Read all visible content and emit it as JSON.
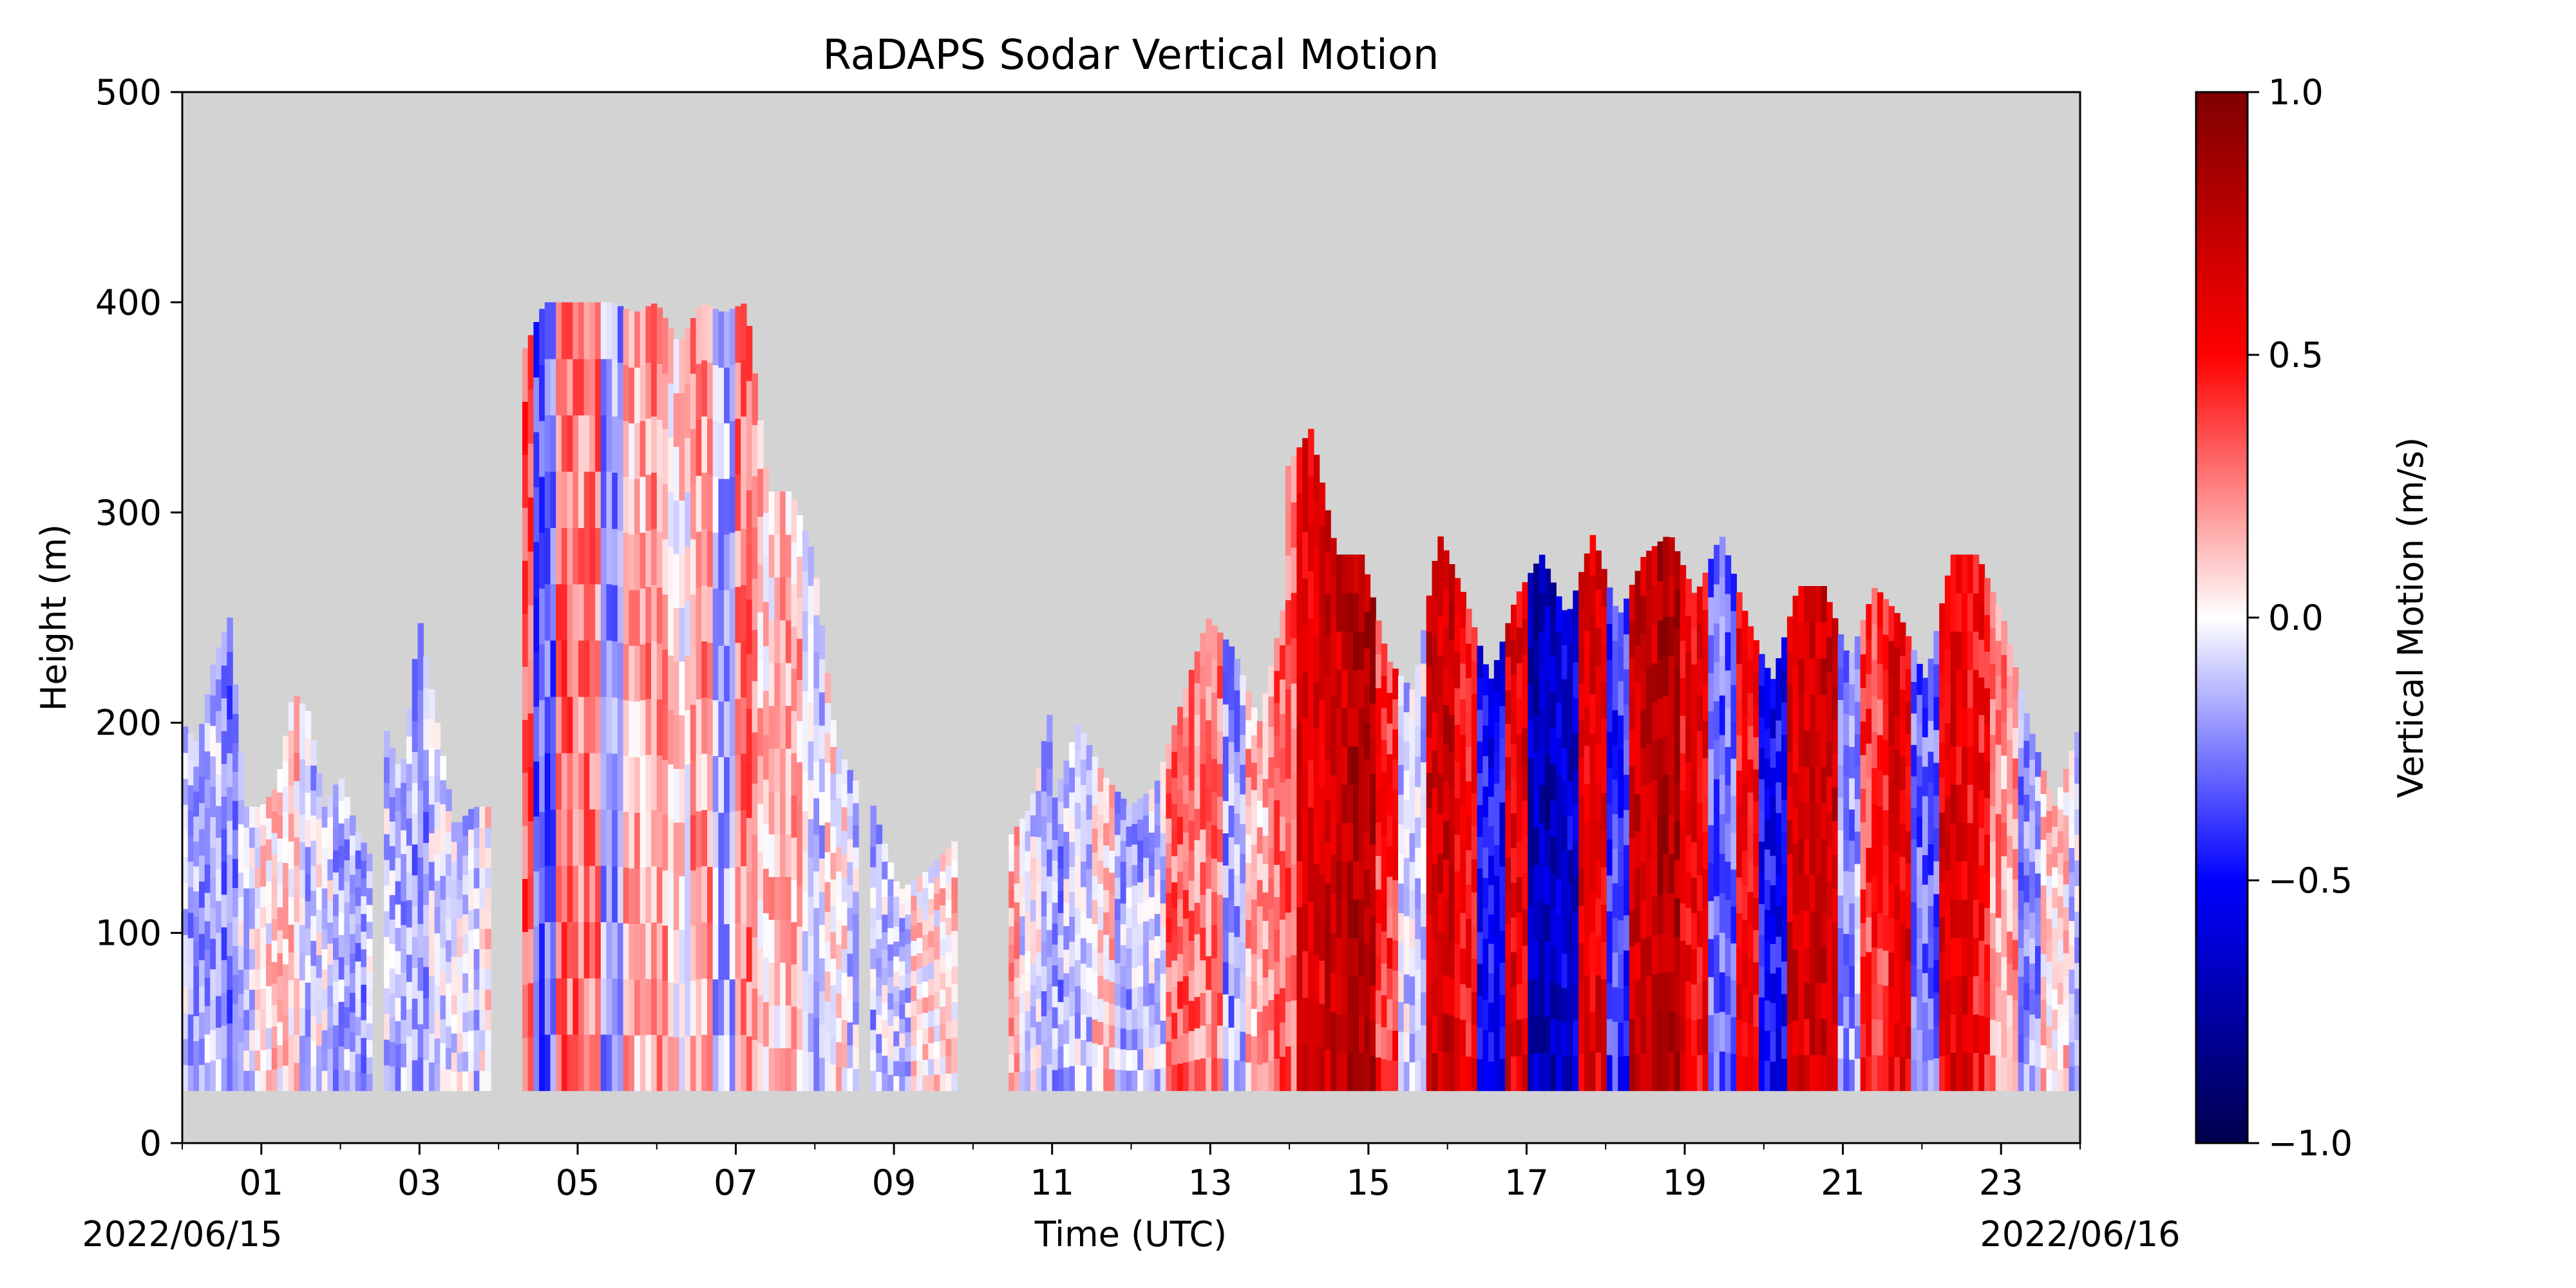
{
  "chart_data": {
    "type": "heatmap",
    "title": "RaDAPS Sodar Vertical Motion",
    "xlabel": "Time (UTC)",
    "ylabel": "Height (m)",
    "x_unit": "hour UTC",
    "xlim": [
      0,
      24
    ],
    "ylim": [
      0,
      500
    ],
    "x_ticks": [
      {
        "value": 1,
        "label": "01"
      },
      {
        "value": 3,
        "label": "03"
      },
      {
        "value": 5,
        "label": "05"
      },
      {
        "value": 7,
        "label": "07"
      },
      {
        "value": 9,
        "label": "09"
      },
      {
        "value": 11,
        "label": "11"
      },
      {
        "value": 13,
        "label": "13"
      },
      {
        "value": 15,
        "label": "15"
      },
      {
        "value": 17,
        "label": "17"
      },
      {
        "value": 19,
        "label": "19"
      },
      {
        "value": 21,
        "label": "21"
      },
      {
        "value": 23,
        "label": "23"
      }
    ],
    "y_ticks": [
      0,
      100,
      200,
      300,
      400,
      500
    ],
    "date_start": "2022/06/15",
    "date_end": "2022/06/16",
    "colorbar": {
      "label": "Vertical Motion (m/s)",
      "range": [
        -1.0,
        1.0
      ],
      "ticks": [
        "-1.0",
        "-0.5",
        "0.0",
        "0.5",
        "1.0"
      ],
      "colormap": "seismic",
      "colors": [
        "#00004c",
        "#0000ff",
        "#ffffff",
        "#ff0000",
        "#7f0000"
      ]
    },
    "no_data_color": "#d3d3d3",
    "grid": false,
    "data_floor_m": 25,
    "segments": [
      {
        "start": 0.0,
        "end": 2.4,
        "top": [
          200,
          190,
          230,
          250,
          160,
          160,
          170,
          215,
          205,
          160,
          175,
          150,
          135
        ],
        "mean": [
          -0.12,
          -0.2,
          -0.15,
          -0.25,
          -0.1,
          0.05,
          0.08,
          0.1,
          -0.12,
          -0.05,
          -0.15,
          -0.2,
          -0.1
        ]
      },
      {
        "start": 2.55,
        "end": 3.9,
        "top": [
          200,
          175,
          250,
          200,
          150,
          160,
          160
        ],
        "mean": [
          -0.1,
          -0.15,
          -0.2,
          -0.1,
          -0.05,
          -0.1,
          0.05
        ]
      },
      {
        "start": 4.3,
        "end": 8.55,
        "top": [
          375,
          400,
          400,
          400,
          400,
          395,
          400,
          380,
          400,
          395,
          400,
          310,
          310,
          280,
          190,
          170
        ],
        "mean": [
          0.35,
          -0.3,
          0.3,
          0.25,
          -0.2,
          0.15,
          0.2,
          0.05,
          0.2,
          -0.15,
          0.25,
          0.1,
          0.15,
          -0.1,
          0.05,
          -0.1
        ]
      },
      {
        "start": 8.7,
        "end": 9.8,
        "top": [
          165,
          120,
          130,
          145
        ],
        "mean": [
          -0.15,
          -0.1,
          0.05,
          0.1
        ]
      },
      {
        "start": 10.45,
        "end": 11.0,
        "top": [
          145,
          160,
          210
        ],
        "mean": [
          0.15,
          -0.05,
          -0.15
        ]
      },
      {
        "start": 11.0,
        "end": 13.95,
        "top": [
          160,
          200,
          175,
          160,
          170,
          210,
          250,
          235,
          200,
          260
        ],
        "mean": [
          -0.2,
          -0.1,
          0.1,
          -0.15,
          -0.1,
          0.3,
          0.25,
          -0.2,
          0.15,
          0.3
        ]
      },
      {
        "start": 13.95,
        "end": 24.0,
        "top": [
          320,
          340,
          280,
          280,
          230,
          215,
          290,
          260,
          220,
          260,
          280,
          250,
          290,
          250,
          280,
          290,
          260,
          290,
          250,
          220,
          265,
          265,
          230,
          265,
          250,
          220,
          280,
          280,
          250,
          200,
          160,
          200
        ],
        "mean": [
          0.3,
          0.6,
          0.7,
          0.8,
          0.4,
          -0.1,
          0.7,
          0.5,
          -0.5,
          0.6,
          -0.7,
          -0.6,
          0.6,
          -0.4,
          0.7,
          0.8,
          0.55,
          -0.3,
          0.5,
          -0.5,
          0.65,
          0.7,
          -0.2,
          0.4,
          0.6,
          -0.3,
          0.6,
          0.5,
          0.2,
          -0.2,
          0.1,
          -0.1
        ]
      }
    ]
  }
}
